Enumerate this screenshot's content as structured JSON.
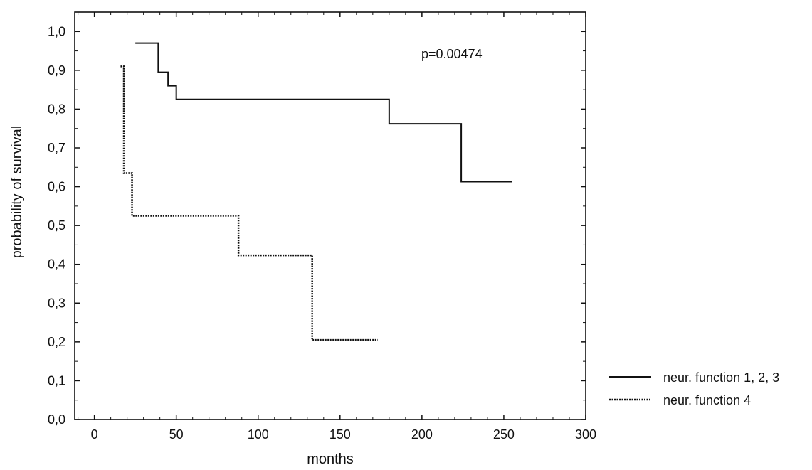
{
  "chart_data": {
    "type": "line",
    "step": true,
    "title": "",
    "xlabel": "months",
    "ylabel": "probability of survival",
    "xlim": [
      -12,
      300
    ],
    "ylim": [
      0,
      1.05
    ],
    "xticks": [
      0,
      50,
      100,
      150,
      200,
      250,
      300
    ],
    "yticks": [
      0,
      0.1,
      0.2,
      0.3,
      0.4,
      0.5,
      0.6,
      0.7,
      0.8,
      0.9,
      1.0
    ],
    "ytick_labels": [
      "0,0",
      "0,1",
      "0,2",
      "0,3",
      "0,4",
      "0,5",
      "0,6",
      "0,7",
      "0,8",
      "0,9",
      "1,0"
    ],
    "annotation": "p=0.00474",
    "legend_position": "bottom-right, outside plot",
    "grid": false,
    "series": [
      {
        "name": "neur. function 1, 2, 3",
        "style": "solid",
        "color": "#111111",
        "x": [
          25,
          39,
          45,
          50,
          180,
          224,
          255
        ],
        "y": [
          0.97,
          0.895,
          0.86,
          0.825,
          0.762,
          0.613,
          0.613
        ]
      },
      {
        "name": "neur. function 4",
        "style": "dotted",
        "color": "#111111",
        "x": [
          16,
          18,
          23,
          88,
          133,
          173
        ],
        "y": [
          0.91,
          0.635,
          0.525,
          0.423,
          0.205,
          0.205
        ]
      }
    ]
  }
}
